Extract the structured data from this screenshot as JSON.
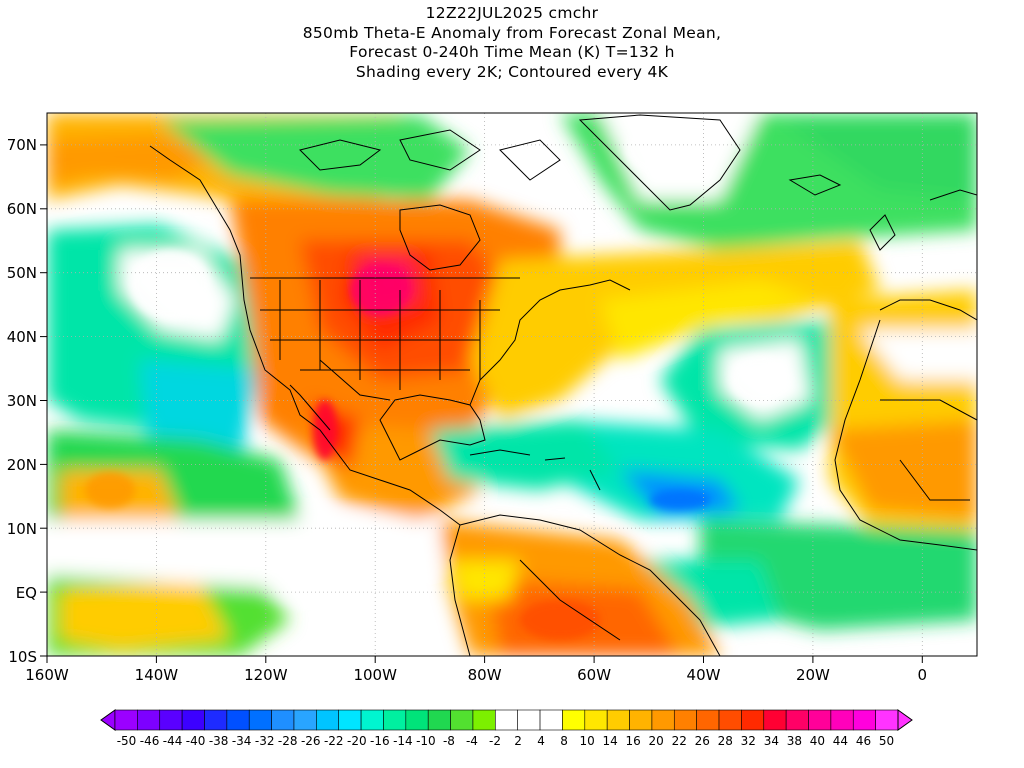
{
  "title": {
    "lines": [
      "12Z22JUL2025 cmchr",
      "850mb Theta-E Anomaly from Forecast Zonal Mean,",
      "Forecast 0-240h Time Mean (K) T=132 h",
      "Shading every 2K; Contoured every 4K"
    ]
  },
  "map": {
    "projection": "cylindrical equidistant",
    "lon_range": [
      -160,
      10
    ],
    "lat_range": [
      -10,
      75
    ],
    "x_ticks": [
      "160W",
      "140W",
      "120W",
      "100W",
      "80W",
      "60W",
      "40W",
      "20W",
      "0"
    ],
    "y_ticks": [
      "70N",
      "60N",
      "50N",
      "40N",
      "30N",
      "20N",
      "10N",
      "EQ",
      "10S"
    ],
    "grid": "dotted",
    "features": [
      "coastlines",
      "country borders",
      "US state borders"
    ],
    "colors": {
      "land_border": "#000000",
      "grid": "#b0b0b0"
    }
  },
  "colorbar": {
    "labels": [
      "-50",
      "-46",
      "-44",
      "-40",
      "-38",
      "-34",
      "-32",
      "-28",
      "-26",
      "-22",
      "-20",
      "-16",
      "-14",
      "-10",
      "-8",
      "-4",
      "-2",
      "2",
      "4",
      "8",
      "10",
      "14",
      "16",
      "20",
      "22",
      "26",
      "28",
      "32",
      "34",
      "38",
      "40",
      "44",
      "46",
      "50"
    ],
    "colors": [
      "#9b00ff",
      "#7d00ff",
      "#5a00ff",
      "#3c00ff",
      "#1e2bff",
      "#0050ff",
      "#0070ff",
      "#1f8fff",
      "#29a5ff",
      "#00c4ff",
      "#00e5ff",
      "#00f5d0",
      "#00f0a0",
      "#00e37a",
      "#20d850",
      "#52e030",
      "#7cf000",
      "#ffffff",
      "#ffffff",
      "#ffffff",
      "#ffff00",
      "#ffe600",
      "#ffcc00",
      "#ffb300",
      "#ff9900",
      "#ff8000",
      "#ff6600",
      "#ff4d00",
      "#ff2a00",
      "#ff0033",
      "#ff0066",
      "#ff0099",
      "#ff00bb",
      "#ff00dd",
      "#ff33ff"
    ]
  }
}
